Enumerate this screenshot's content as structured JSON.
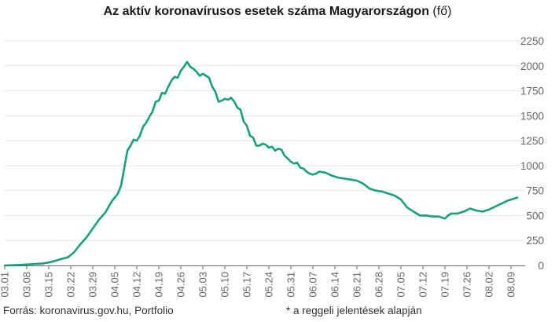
{
  "title": {
    "main": "Az aktív koronavírusos esetek száma Magyarországon",
    "unit": "(fő)"
  },
  "footer": {
    "source": "Forrás: koronavirus.gov.hu, Portfolio",
    "note": "* a reggeli jelentések alapján"
  },
  "colors": {
    "line": "#17a07b",
    "grid": "#e6e6e6",
    "axis": "#666666",
    "tick_text": "#666666"
  },
  "chart_data": {
    "type": "line",
    "ylim": [
      0,
      2250
    ],
    "yticks": [
      0,
      250,
      500,
      750,
      1000,
      1250,
      1500,
      1750,
      2000,
      2250
    ],
    "xlim": [
      0,
      163
    ],
    "grid": "horizontal",
    "xtick_labels": [
      "03.01",
      "03.08",
      "03.15",
      "03.22",
      "03.29",
      "04.05",
      "04.12",
      "04.19",
      "04.26",
      "05.03",
      "05.10",
      "05.17",
      "05.24",
      "05.31",
      "06.07",
      "06.14",
      "06.21",
      "06.28",
      "07.05",
      "07.12",
      "07.19",
      "07.26",
      "08.02",
      "08.09"
    ],
    "xtick_days": [
      0,
      7,
      14,
      21,
      28,
      35,
      42,
      49,
      56,
      63,
      70,
      77,
      84,
      91,
      98,
      105,
      112,
      119,
      126,
      133,
      140,
      147,
      154,
      161
    ],
    "series": [
      {
        "x": [
          0,
          4,
          8,
          12,
          14,
          16,
          18,
          20,
          22,
          24,
          26,
          28,
          30,
          32,
          34,
          36,
          37,
          38,
          39,
          40,
          41,
          42,
          43,
          44,
          45,
          46,
          47,
          48,
          49,
          50,
          51,
          52,
          53,
          54,
          55,
          56,
          57,
          58,
          59,
          60,
          61,
          62,
          63,
          64,
          65,
          66,
          67,
          68,
          69,
          70,
          71,
          72,
          73,
          74,
          75,
          76,
          77,
          78,
          79,
          80,
          81,
          82,
          83,
          84,
          85,
          86,
          87,
          88,
          89,
          90,
          91,
          92,
          93,
          94,
          95,
          96,
          97,
          98,
          99,
          100,
          102,
          104,
          106,
          108,
          110,
          112,
          114,
          116,
          118,
          120,
          122,
          124,
          126,
          128,
          130,
          132,
          134,
          136,
          138,
          140,
          141,
          142,
          144,
          146,
          148,
          150,
          152,
          154,
          156,
          158,
          160,
          162,
          163
        ],
        "y": [
          0,
          5,
          12,
          20,
          30,
          45,
          65,
          80,
          130,
          210,
          280,
          370,
          460,
          530,
          640,
          720,
          800,
          970,
          1150,
          1200,
          1260,
          1250,
          1300,
          1390,
          1430,
          1490,
          1540,
          1640,
          1650,
          1730,
          1720,
          1790,
          1850,
          1890,
          1880,
          1950,
          1990,
          2040,
          1990,
          1970,
          1940,
          1900,
          1920,
          1900,
          1880,
          1790,
          1740,
          1640,
          1650,
          1670,
          1660,
          1680,
          1640,
          1580,
          1560,
          1440,
          1400,
          1300,
          1280,
          1200,
          1200,
          1220,
          1210,
          1180,
          1190,
          1150,
          1170,
          1160,
          1100,
          1070,
          1040,
          1020,
          1030,
          980,
          970,
          940,
          920,
          910,
          920,
          940,
          930,
          900,
          880,
          870,
          860,
          850,
          820,
          770,
          750,
          740,
          720,
          700,
          660,
          580,
          540,
          500,
          500,
          490,
          490,
          470,
          500,
          520,
          520,
          540,
          570,
          550,
          540,
          560,
          590,
          620,
          650,
          670,
          680
        ]
      }
    ]
  }
}
